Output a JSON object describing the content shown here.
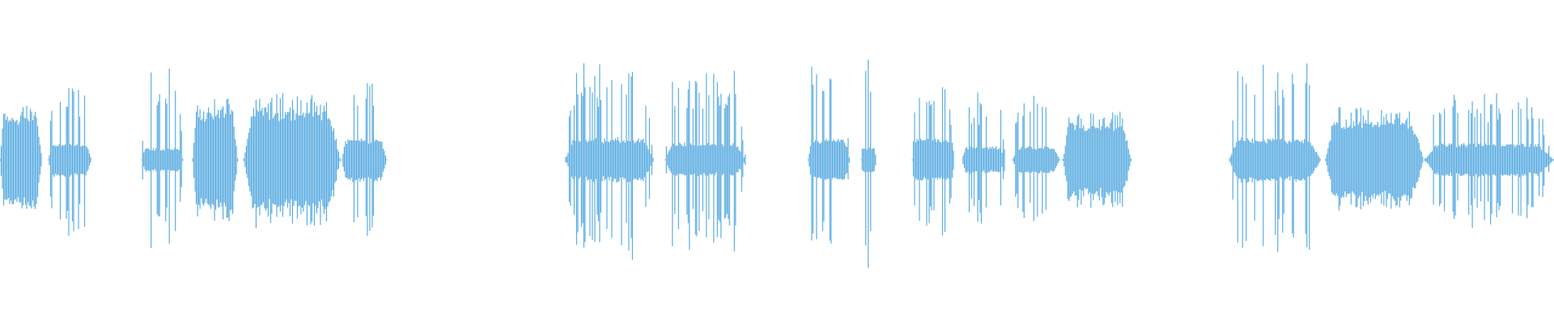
{
  "chart_data": {
    "type": "waveform",
    "color": "#5dade2",
    "background": "#ffffff",
    "axes": "none",
    "grid": false,
    "amplitude_range": [
      -1,
      1
    ],
    "time_range_percent": [
      0,
      100
    ],
    "segments": [
      {
        "start": 0.0,
        "end": 2.7,
        "core": 0.28,
        "peak": 0.31
      },
      {
        "start": 3.1,
        "end": 5.9,
        "core": 0.1,
        "peak": 0.44
      },
      {
        "start": 9.1,
        "end": 11.8,
        "core": 0.07,
        "peak": 0.56
      },
      {
        "start": 12.4,
        "end": 15.3,
        "core": 0.31,
        "peak": 0.37
      },
      {
        "start": 15.7,
        "end": 21.9,
        "core": 0.31,
        "peak": 0.4
      },
      {
        "start": 22.0,
        "end": 24.9,
        "core": 0.13,
        "peak": 0.5
      },
      {
        "start": 36.4,
        "end": 42.1,
        "core": 0.13,
        "peak": 0.59
      },
      {
        "start": 42.8,
        "end": 48.0,
        "core": 0.1,
        "peak": 0.53
      },
      {
        "start": 52.0,
        "end": 54.7,
        "core": 0.13,
        "peak": 0.56
      },
      {
        "start": 55.4,
        "end": 56.4,
        "core": 0.08,
        "peak": 0.67
      },
      {
        "start": 58.7,
        "end": 61.4,
        "core": 0.13,
        "peak": 0.47
      },
      {
        "start": 61.9,
        "end": 64.7,
        "core": 0.08,
        "peak": 0.4
      },
      {
        "start": 65.2,
        "end": 68.2,
        "core": 0.08,
        "peak": 0.4
      },
      {
        "start": 68.4,
        "end": 72.8,
        "core": 0.22,
        "peak": 0.28
      },
      {
        "start": 79.1,
        "end": 85.0,
        "core": 0.13,
        "peak": 0.59
      },
      {
        "start": 85.3,
        "end": 91.6,
        "core": 0.25,
        "peak": 0.31
      },
      {
        "start": 91.7,
        "end": 100.0,
        "core": 0.1,
        "peak": 0.4
      }
    ]
  }
}
